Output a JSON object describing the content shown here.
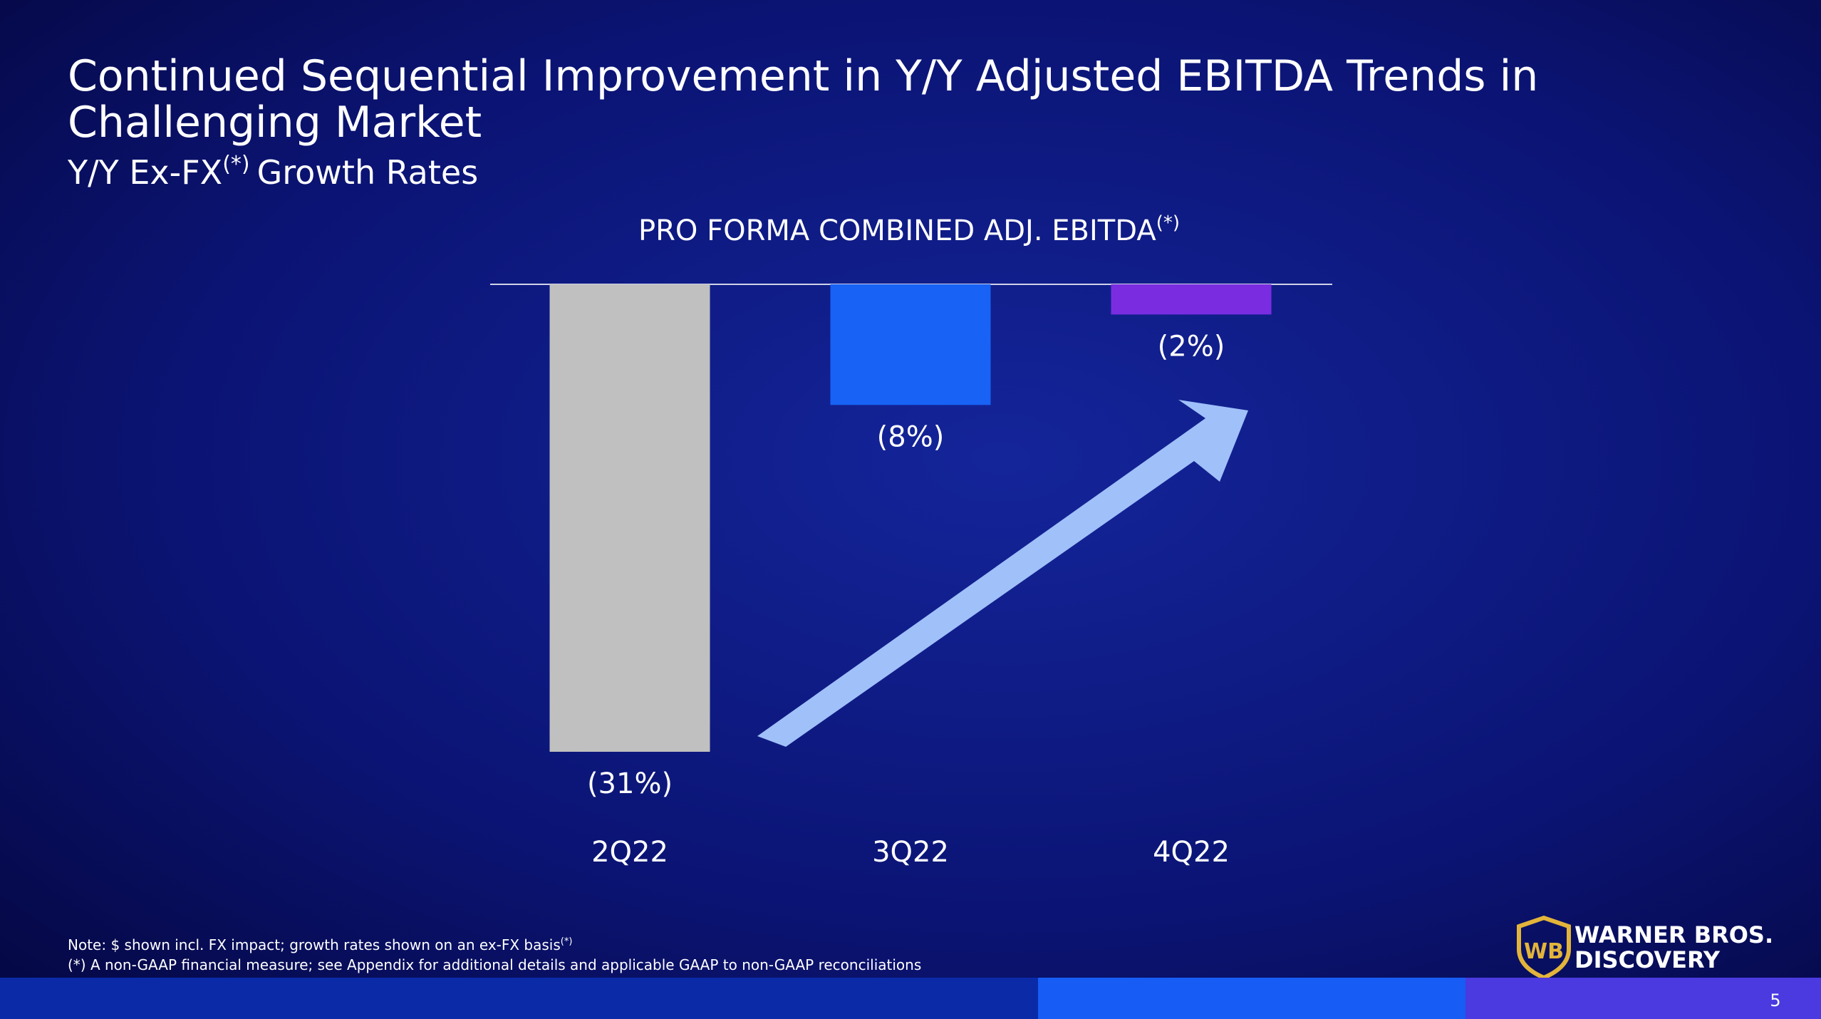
{
  "chart_data": {
    "type": "bar",
    "title": "Continued Sequential Improvement in Y/Y Adjusted EBITDA Trends in",
    "title_line2": "Challenging Market",
    "subtitle": "Y/Y Ex-FX",
    "subtitle_sup": "(*)",
    "subtitle_rest": "Growth Rates",
    "chart_title": "PRO FORMA COMBINED ADJ. EBITDA",
    "chart_title_sup": "(*)",
    "categories": [
      "2Q22",
      "3Q22",
      "4Q22"
    ],
    "values": [
      -31,
      -8,
      -2
    ],
    "value_labels": [
      "(31%)",
      "(8%)",
      "(2%)"
    ],
    "colors": [
      "#c0c0c0",
      "#1862f5",
      "#7a2de0"
    ],
    "ylim": [
      -31,
      0
    ],
    "note": "Note: $ shown incl. FX impact; growth rates shown on an ex-FX basis",
    "note_sup": "(*)",
    "footnote": "(*) A non-GAAP financial measure; see Appendix for additional details and applicable GAAP to non-GAAP reconciliations",
    "logo_line1": "WARNER BROS.",
    "logo_line2": "DISCOVERY",
    "page_number": "5"
  }
}
